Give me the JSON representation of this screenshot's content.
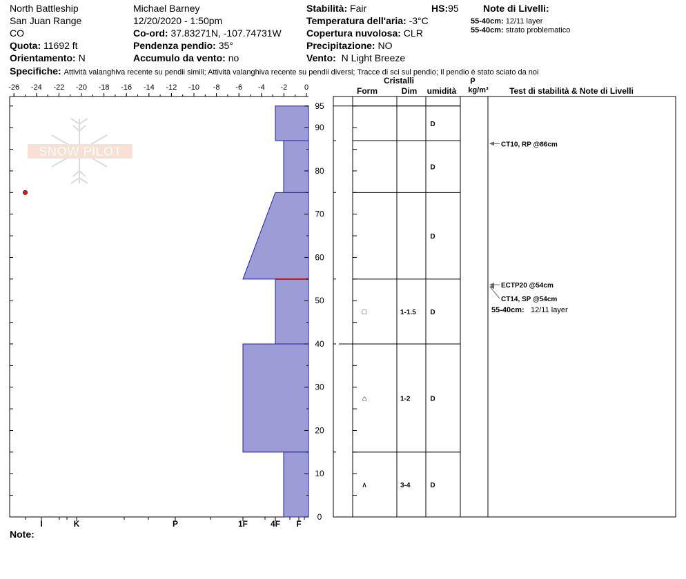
{
  "header": {
    "location": "North Battleship",
    "range": "San Juan Range",
    "state": "CO",
    "elevation_label": "Quota:",
    "elevation": "11692 ft",
    "aspect_label": "Orientamento:",
    "aspect": "N",
    "observer": "Michael Barney",
    "datetime": "12/20/2020 - 1:50pm",
    "coord_label": "Co-ord:",
    "coord": "37.83271N, -107.74731W",
    "slope_label": "Pendenza pendio:",
    "slope": "35°",
    "wind_load_label": "Accumulo da vento:",
    "wind_load": "no",
    "stability_label": "Stabilità:",
    "stability": "Fair",
    "hs_label": "HS:",
    "hs": "95",
    "air_temp_label": "Temperatura dell'aria:",
    "air_temp": "-3°C",
    "sky_label": "Copertura nuvolosa:",
    "sky": "CLR",
    "precip_label": "Precipitazione:",
    "precip": "NO",
    "wind_label": "Vento:",
    "wind": "N Light Breeze",
    "layer_notes_title": "Note di Livelli:",
    "layer_notes": [
      {
        "range": "55-40cm:",
        "text": "12/11 layer"
      },
      {
        "range": "55-40cm:",
        "text": "strato problematico"
      }
    ],
    "specifics_label": "Specifiche:",
    "specifics": "Attività valanghiva recente su pendii simili;  Attività valanghiva recente su pendii diversi;  Tracce di sci sul pendio;  Il pendio è stato sciato da noi",
    "notes_label": "Note:"
  },
  "columns": {
    "crystals": "Cristalli",
    "form": "Form",
    "size": "Dim",
    "moisture": "umidità",
    "density_symbol": "ρ",
    "density_unit": "kg/m³",
    "tests": "Test di stabilità & Note di Livelli"
  },
  "logo_text": "SNOW PILOT",
  "chart_data": {
    "type": "snow_profile",
    "temp_axis_ticks": [
      -26,
      -24,
      -22,
      -20,
      -18,
      -16,
      -14,
      -12,
      -10,
      -8,
      -6,
      -4,
      -2,
      0
    ],
    "depth_ticks": [
      0,
      10,
      20,
      30,
      40,
      50,
      60,
      70,
      80,
      90,
      95
    ],
    "hardness_ticks": [
      "I",
      "K",
      "P",
      "1F",
      "4F",
      "F"
    ],
    "hs": 95,
    "temperature_points": [
      {
        "depth": 75,
        "temp": -25
      }
    ],
    "layers": [
      {
        "top": 95,
        "bottom": 87,
        "hardness_top": "4F+",
        "hardness_bottom": "4F+",
        "moisture": "D",
        "form": "",
        "size": ""
      },
      {
        "top": 87,
        "bottom": 75,
        "hardness_top": "4F-",
        "hardness_bottom": "4F-",
        "moisture": "D",
        "form": "",
        "size": ""
      },
      {
        "top": 75,
        "bottom": 55,
        "hardness_top": "4F",
        "hardness_bottom": "1F",
        "moisture": "D",
        "form": "",
        "size": ""
      },
      {
        "top": 55,
        "bottom": 40,
        "hardness_top": "4F+",
        "hardness_bottom": "4F+",
        "moisture": "D",
        "form": "□",
        "size": "1-1.5"
      },
      {
        "top": 40,
        "bottom": 15,
        "hardness_top": "1F",
        "hardness_bottom": "1F",
        "moisture": "D",
        "form": "⌂",
        "size": "1-2"
      },
      {
        "top": 15,
        "bottom": 0,
        "hardness_top": "4F-",
        "hardness_bottom": "4F-",
        "moisture": "D",
        "form": "∧",
        "size": "3-4"
      }
    ],
    "weak_layer_depth": 55,
    "stability_tests": [
      {
        "label": "CT10, RP @86cm",
        "depth": 86
      },
      {
        "label": "ECTP20 @54cm",
        "depth": 54
      },
      {
        "label": "CT14, SP @54cm",
        "depth": 54
      }
    ],
    "layer_note": {
      "range": "55-40cm:",
      "text": "12/11 layer",
      "depth": 48
    }
  }
}
